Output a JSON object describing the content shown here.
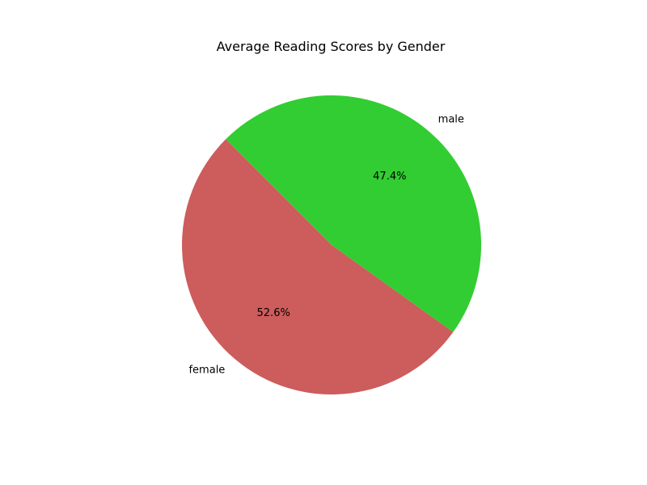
{
  "chart_data": {
    "type": "pie",
    "title": "Average Reading Scores by Gender",
    "categories": [
      "female",
      "male"
    ],
    "values": [
      52.6,
      47.4
    ],
    "value_labels": [
      "52.6%",
      "47.4%"
    ],
    "colors": [
      "#cd5c5c",
      "#32cd32"
    ],
    "start_angle_deg": 135,
    "direction": "counterclockwise"
  }
}
